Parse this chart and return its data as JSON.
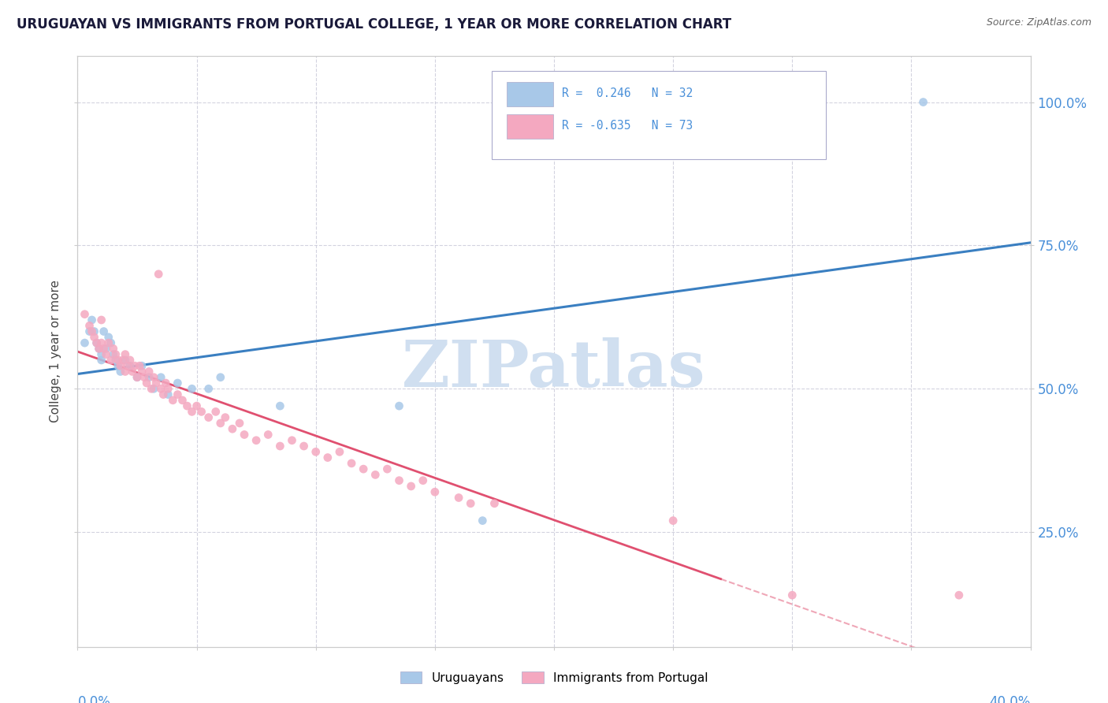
{
  "title": "URUGUAYAN VS IMMIGRANTS FROM PORTUGAL COLLEGE, 1 YEAR OR MORE CORRELATION CHART",
  "source": "Source: ZipAtlas.com",
  "ylabel": "College, 1 year or more",
  "ytick_values": [
    0.25,
    0.5,
    0.75,
    1.0
  ],
  "ytick_labels": [
    "25.0%",
    "50.0%",
    "75.0%",
    "100.0%"
  ],
  "xmin": 0.0,
  "xmax": 0.4,
  "ymin": 0.05,
  "ymax": 1.08,
  "uruguayan_color": "#a8c8e8",
  "portugal_color": "#f4a8c0",
  "trend_uruguayan_color": "#3a7fc1",
  "trend_portugal_color": "#e05070",
  "right_tick_color": "#4a90d9",
  "watermark_color": "#d0dff0",
  "legend_box_color": "#aaaacc",
  "background_color": "#ffffff",
  "grid_color": "#c8c8d8",
  "uruguayan_points": [
    [
      0.003,
      0.58
    ],
    [
      0.005,
      0.6
    ],
    [
      0.006,
      0.62
    ],
    [
      0.007,
      0.6
    ],
    [
      0.008,
      0.58
    ],
    [
      0.009,
      0.57
    ],
    [
      0.01,
      0.55
    ],
    [
      0.01,
      0.56
    ],
    [
      0.011,
      0.6
    ],
    [
      0.012,
      0.57
    ],
    [
      0.013,
      0.59
    ],
    [
      0.014,
      0.58
    ],
    [
      0.015,
      0.56
    ],
    [
      0.016,
      0.55
    ],
    [
      0.017,
      0.54
    ],
    [
      0.018,
      0.53
    ],
    [
      0.02,
      0.55
    ],
    [
      0.022,
      0.54
    ],
    [
      0.025,
      0.52
    ],
    [
      0.027,
      0.54
    ],
    [
      0.03,
      0.52
    ],
    [
      0.032,
      0.5
    ],
    [
      0.035,
      0.52
    ],
    [
      0.038,
      0.49
    ],
    [
      0.042,
      0.51
    ],
    [
      0.048,
      0.5
    ],
    [
      0.055,
      0.5
    ],
    [
      0.06,
      0.52
    ],
    [
      0.085,
      0.47
    ],
    [
      0.135,
      0.47
    ],
    [
      0.17,
      0.27
    ],
    [
      0.355,
      1.0
    ]
  ],
  "portugal_points": [
    [
      0.003,
      0.63
    ],
    [
      0.005,
      0.61
    ],
    [
      0.006,
      0.6
    ],
    [
      0.007,
      0.59
    ],
    [
      0.008,
      0.58
    ],
    [
      0.009,
      0.57
    ],
    [
      0.01,
      0.62
    ],
    [
      0.01,
      0.58
    ],
    [
      0.011,
      0.57
    ],
    [
      0.012,
      0.56
    ],
    [
      0.013,
      0.58
    ],
    [
      0.014,
      0.55
    ],
    [
      0.015,
      0.57
    ],
    [
      0.016,
      0.56
    ],
    [
      0.017,
      0.55
    ],
    [
      0.018,
      0.54
    ],
    [
      0.019,
      0.55
    ],
    [
      0.02,
      0.53
    ],
    [
      0.02,
      0.56
    ],
    [
      0.021,
      0.54
    ],
    [
      0.022,
      0.55
    ],
    [
      0.023,
      0.53
    ],
    [
      0.024,
      0.54
    ],
    [
      0.025,
      0.52
    ],
    [
      0.026,
      0.54
    ],
    [
      0.027,
      0.53
    ],
    [
      0.028,
      0.52
    ],
    [
      0.029,
      0.51
    ],
    [
      0.03,
      0.53
    ],
    [
      0.031,
      0.5
    ],
    [
      0.032,
      0.52
    ],
    [
      0.033,
      0.51
    ],
    [
      0.034,
      0.7
    ],
    [
      0.035,
      0.5
    ],
    [
      0.036,
      0.49
    ],
    [
      0.037,
      0.51
    ],
    [
      0.038,
      0.5
    ],
    [
      0.04,
      0.48
    ],
    [
      0.042,
      0.49
    ],
    [
      0.044,
      0.48
    ],
    [
      0.046,
      0.47
    ],
    [
      0.048,
      0.46
    ],
    [
      0.05,
      0.47
    ],
    [
      0.052,
      0.46
    ],
    [
      0.055,
      0.45
    ],
    [
      0.058,
      0.46
    ],
    [
      0.06,
      0.44
    ],
    [
      0.062,
      0.45
    ],
    [
      0.065,
      0.43
    ],
    [
      0.068,
      0.44
    ],
    [
      0.07,
      0.42
    ],
    [
      0.075,
      0.41
    ],
    [
      0.08,
      0.42
    ],
    [
      0.085,
      0.4
    ],
    [
      0.09,
      0.41
    ],
    [
      0.095,
      0.4
    ],
    [
      0.1,
      0.39
    ],
    [
      0.105,
      0.38
    ],
    [
      0.11,
      0.39
    ],
    [
      0.115,
      0.37
    ],
    [
      0.12,
      0.36
    ],
    [
      0.125,
      0.35
    ],
    [
      0.13,
      0.36
    ],
    [
      0.135,
      0.34
    ],
    [
      0.14,
      0.33
    ],
    [
      0.145,
      0.34
    ],
    [
      0.15,
      0.32
    ],
    [
      0.16,
      0.31
    ],
    [
      0.165,
      0.3
    ],
    [
      0.175,
      0.3
    ],
    [
      0.25,
      0.27
    ],
    [
      0.3,
      0.14
    ],
    [
      0.37,
      0.14
    ]
  ],
  "legend_entries": [
    {
      "text": "R =  0.246   N = 32",
      "fill": "#a8c8e8"
    },
    {
      "text": "R = -0.635   N = 73",
      "fill": "#f4a8c0"
    }
  ]
}
